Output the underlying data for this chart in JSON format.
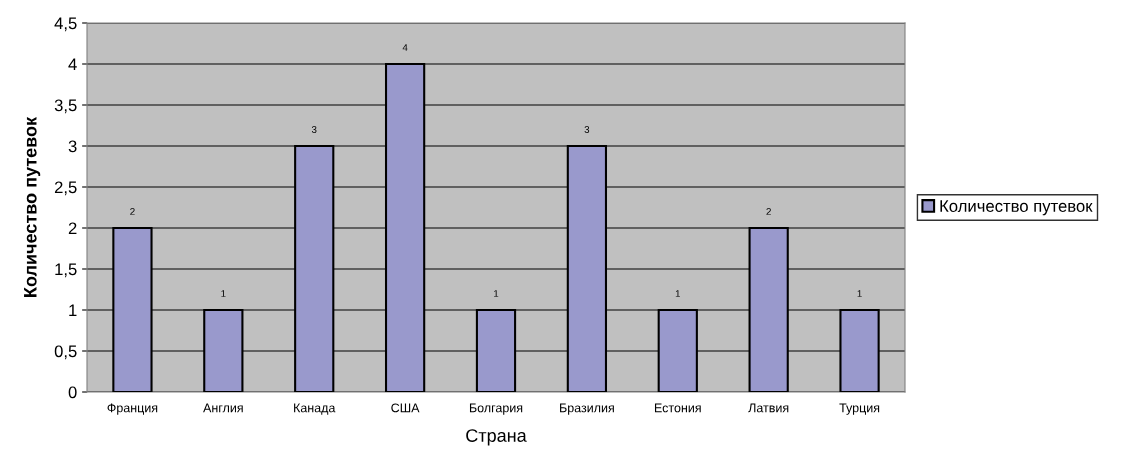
{
  "chart_data": {
    "type": "bar",
    "xlabel": "Страна",
    "ylabel": "Количество путевок",
    "categories": [
      "Франция",
      "Англия",
      "Канада",
      "США",
      "Болгария",
      "Бразилия",
      "Естония",
      "Латвия",
      "Турция"
    ],
    "series": [
      {
        "name": "Количество путевок",
        "color": "#9999cc",
        "values": [
          2,
          1,
          3,
          4,
          1,
          3,
          1,
          2,
          1
        ]
      }
    ],
    "ylim": [
      0,
      4.5
    ],
    "yticks": [
      0,
      {
        "value": 0.5,
        "label": "0,5"
      },
      1,
      {
        "value": 1.5,
        "label": "1,5"
      },
      2,
      {
        "value": 2.5,
        "label": "2,5"
      },
      3,
      {
        "value": 3.5,
        "label": "3,5"
      },
      4,
      {
        "value": 4.5,
        "label": "4,5"
      }
    ],
    "grid": "y",
    "legend": "right",
    "data_labels": true
  }
}
